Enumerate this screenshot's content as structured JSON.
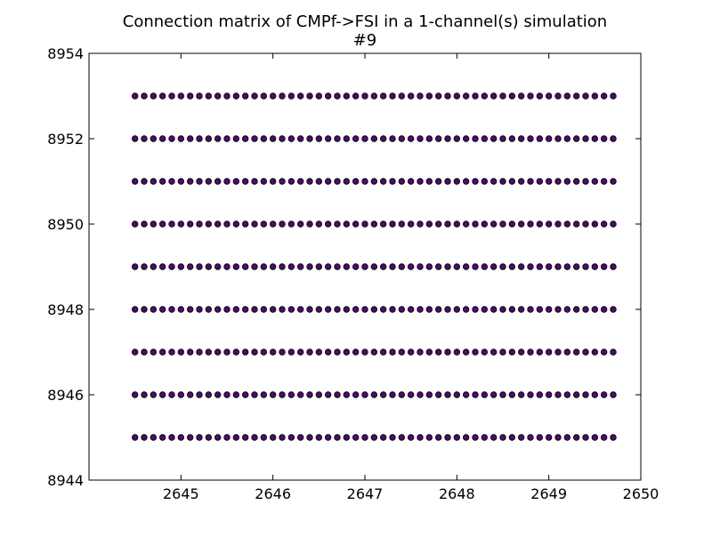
{
  "chart_data": {
    "type": "scatter",
    "title": "Connection matrix of CMPf->FSI in a 1-channel(s) simulation",
    "subtitle": "#9",
    "xlabel": "",
    "ylabel": "",
    "xlim": [
      2644,
      2650
    ],
    "ylim": [
      8944,
      8954
    ],
    "xticks": [
      2645,
      2646,
      2647,
      2648,
      2649,
      2650
    ],
    "yticks": [
      8944,
      8946,
      8948,
      8950,
      8952,
      8954
    ],
    "xtick_labels": [
      "2645",
      "2646",
      "2647",
      "2648",
      "2649",
      "2650"
    ],
    "ytick_labels": [
      "8944",
      "8946",
      "8948",
      "8950",
      "8952",
      "8954"
    ],
    "grid": false,
    "marker_color": "#4b0c6b",
    "series": [
      {
        "x_range": [
          2644.5,
          2649.7
        ],
        "x_count": 53,
        "y_values": [
          8945,
          8946,
          8947,
          8948,
          8949,
          8950,
          8951,
          8952,
          8953
        ]
      }
    ]
  }
}
